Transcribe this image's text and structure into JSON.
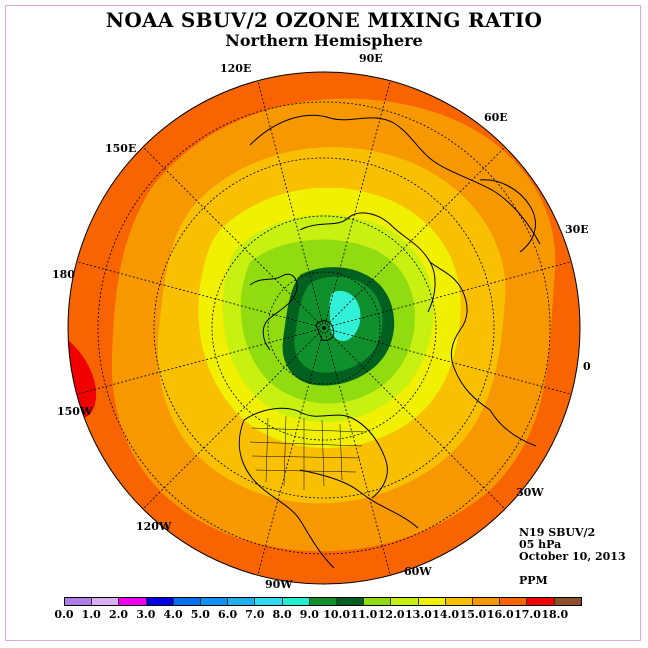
{
  "title": "NOAA SBUV/2 OZONE MIXING RATIO",
  "subtitle": "Northern Hemisphere",
  "longitude_labels": [
    "120E",
    "90E",
    "60E",
    "150E",
    "30E",
    "180",
    "0",
    "150W",
    "30W",
    "120W",
    "90W",
    "60W"
  ],
  "info": {
    "satellite": "N19 SBUV/2",
    "pressure": "05 hPa",
    "date": "October 10, 2013",
    "units": "PPM"
  },
  "colorbar": {
    "ticks": [
      "0.0",
      "1.0",
      "2.0",
      "3.0",
      "4.0",
      "5.0",
      "6.0",
      "7.0",
      "8.0",
      "9.0",
      "10.0",
      "11.0",
      "12.0",
      "13.0",
      "14.0",
      "15.0",
      "16.0",
      "17.0",
      "18.0"
    ],
    "colors": [
      "#b07ce8",
      "#d8b0f0",
      "#f000f0",
      "#0000e0",
      "#0070f0",
      "#1090f0",
      "#20b0f0",
      "#30d8f0",
      "#20f0d0",
      "#10902c",
      "#006020",
      "#90dc10",
      "#c8f010",
      "#f0f000",
      "#f8c000",
      "#f89800",
      "#f86400",
      "#f00000",
      "#8c5028"
    ]
  },
  "map_colors": {
    "ring_16": "#f86400",
    "ring_15": "#f89800",
    "ring_14": "#f8c000",
    "ring_13": "#f0f000",
    "ring_12": "#c8f010",
    "ring_11": "#90dc10",
    "ring_10": "#006020",
    "ring_9": "#10902c",
    "ring_8": "#30f0d8",
    "max_17": "#f00000"
  }
}
